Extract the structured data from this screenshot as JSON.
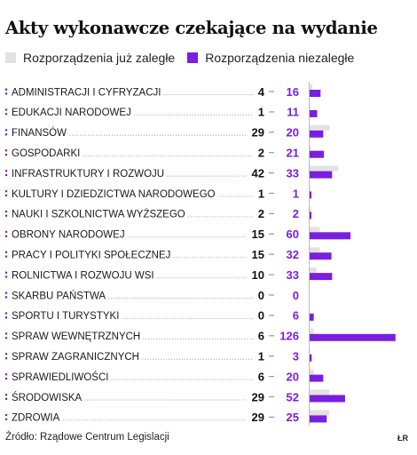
{
  "title": "Akty wykonawcze czekające na wydanie",
  "legend": {
    "overdue": "Rozporządzenia już zaległe",
    "not_overdue": "Rozporządzenia niezaległe"
  },
  "source": "Źródło: Rządowe Centrum Legislacji",
  "credit": "ŁR",
  "colors": {
    "overdue": "#e2e2e2",
    "not_overdue": "#7a1fe0",
    "dots": "#7a1fe0"
  },
  "chart_data": {
    "type": "bar",
    "categories": [
      "ADMINISTRACJI I CYFRYZACJI",
      "EDUKACJI NARODOWEJ",
      "FINANSÓW",
      "GOSPODARKI",
      "INFRASTRUKTURY I ROZWOJU",
      "KULTURY I DZIEDZICTWA NARODOWEGO",
      "NAUKI I SZKOLNICTWA WYŻSZEGO",
      "OBRONY NARODOWEJ",
      "PRACY I POLITYKI SPOŁECZNEJ",
      "ROLNICTWA I ROZWOJU WSI",
      "SKARBU PAŃSTWA",
      "SPORTU I TURYSTYKI",
      "SPRAW WEWNĘTRZNYCH",
      "SPRAW ZAGRANICZNYCH",
      "SPRAWIEDLIWOŚCI",
      "ŚRODOWISKA",
      "ZDROWIA"
    ],
    "series": [
      {
        "name": "Rozporządzenia już zaległe",
        "values": [
          4,
          1,
          29,
          2,
          42,
          1,
          2,
          15,
          15,
          10,
          0,
          0,
          6,
          1,
          6,
          29,
          29
        ]
      },
      {
        "name": "Rozporządzenia niezaległe",
        "values": [
          16,
          11,
          20,
          21,
          33,
          1,
          2,
          60,
          32,
          33,
          0,
          6,
          126,
          3,
          20,
          52,
          25
        ]
      }
    ],
    "axis_break_note": "bar for 126 is shown truncated with a break"
  }
}
